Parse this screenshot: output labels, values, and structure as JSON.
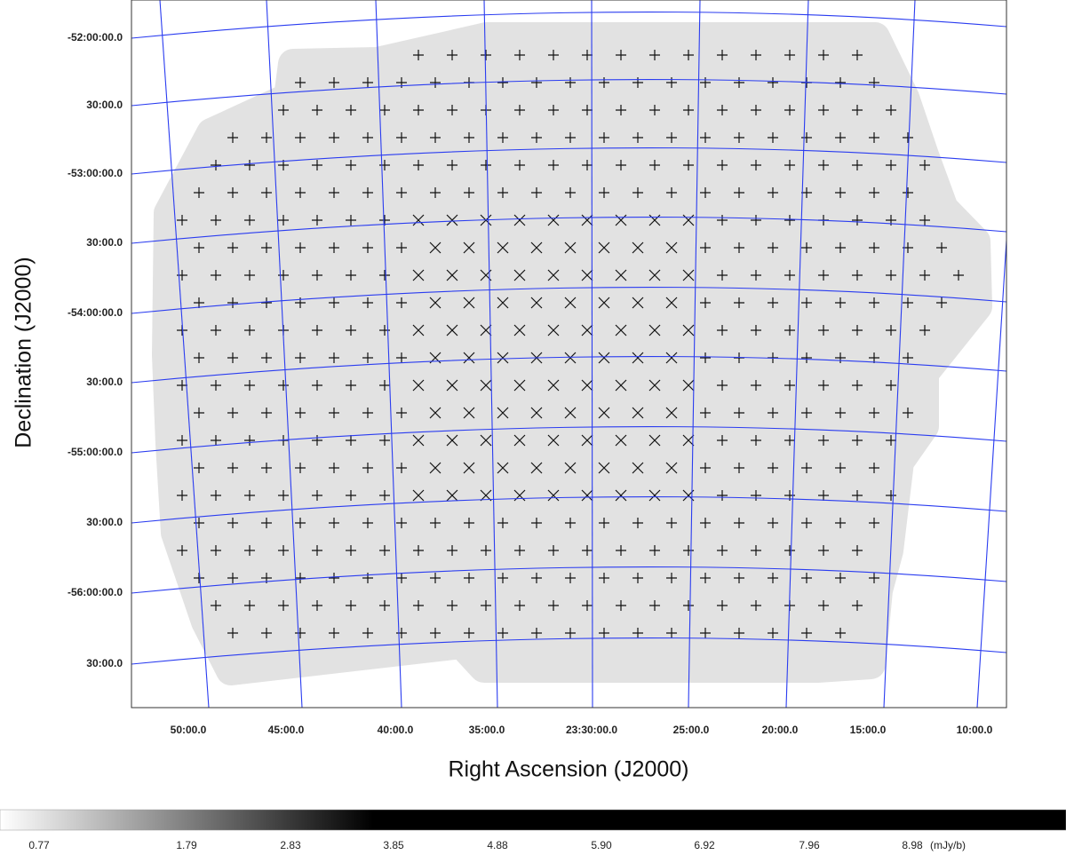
{
  "plot": {
    "y_axis_label": "Declination (J2000)",
    "x_axis_label": "Right Ascension (J2000)",
    "y_tick_labels": [
      "-52:00:00.0",
      "30:00.0",
      "-53:00:00.0",
      "30:00.0",
      "-54:00:00.0",
      "30:00.0",
      "-55:00:00.0",
      "30:00.0",
      "-56:00:00.0",
      "30:00.0"
    ],
    "x_tick_labels": [
      "50:00.0",
      "45:00.0",
      "40:00.0",
      "35:00.0",
      "23:30:00.0",
      "25:00.0",
      "20:00.0",
      "15:00.0",
      "10:00.0"
    ]
  },
  "colorbar": {
    "labels": [
      "0.77",
      "1.79",
      "2.83",
      "3.85",
      "4.88",
      "5.90",
      "6.92",
      "7.96",
      "8.98"
    ],
    "unit": "(mJy/b)"
  }
}
